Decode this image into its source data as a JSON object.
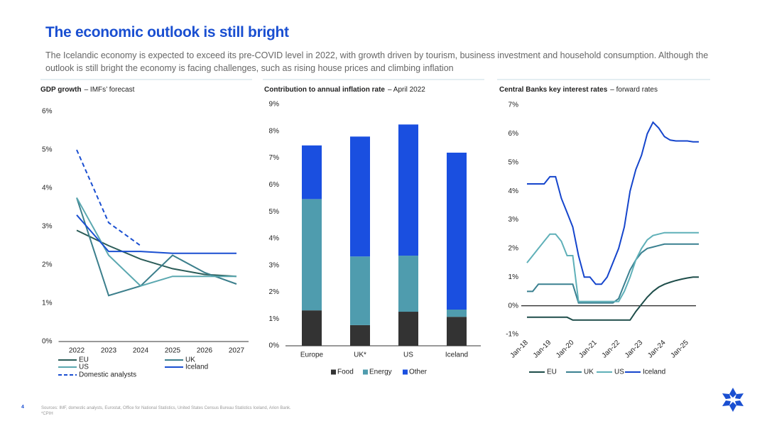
{
  "header": {
    "title": "The economic outlook is still bright",
    "subtitle": "The Icelandic economy is expected to exceed its pre-COVID level in 2022, with growth driven by tourism, business investment and household consumption. Although the outlook is still bright the economy is facing challenges, such as rising house prices and climbing inflation"
  },
  "footer": {
    "page": "4",
    "sources": "Sources: IMF, domestic analysts, Eurostat, Office for National Statistics, United States Census Bureau Statistics Iceland, Arion Bank. *CPIH"
  },
  "chart_data": [
    {
      "type": "line",
      "title": "GDP growth",
      "subtitle": "– IMFs’ forecast",
      "categories": [
        "2022",
        "2023",
        "2024",
        "2025",
        "2026",
        "2027"
      ],
      "ylim": [
        0,
        6
      ],
      "yticks": [
        {
          "value": 0,
          "label": "0%"
        },
        {
          "value": 1,
          "label": "1%"
        },
        {
          "value": 2,
          "label": "2%"
        },
        {
          "value": 3,
          "label": "3%"
        },
        {
          "value": 4,
          "label": "4%"
        },
        {
          "value": 5,
          "label": "5%"
        },
        {
          "value": 6,
          "label": "6%"
        }
      ],
      "series": [
        {
          "name": "EU",
          "color": "#2b5c58",
          "values": [
            2.9,
            2.5,
            2.15,
            1.9,
            1.75,
            1.7
          ]
        },
        {
          "name": "UK",
          "color": "#3c7f8c",
          "values": [
            3.75,
            1.2,
            1.45,
            2.25,
            1.8,
            1.5
          ]
        },
        {
          "name": "US",
          "color": "#5ba8b0",
          "values": [
            3.75,
            2.25,
            1.45,
            1.7,
            1.7,
            1.7
          ]
        },
        {
          "name": "Iceland",
          "color": "#1a4fd1",
          "values": [
            3.3,
            2.35,
            2.35,
            2.3,
            2.3,
            2.3
          ]
        },
        {
          "name": "Domestic analysts",
          "color": "#1a4fd1",
          "style": "dashed",
          "values": [
            5.0,
            3.1,
            2.5,
            null,
            null,
            null
          ]
        }
      ]
    },
    {
      "type": "stacked_bar",
      "title": "Contribution to annual inflation rate",
      "subtitle": "– April 2022",
      "categories": [
        "Europe",
        "UK*",
        "US",
        "Iceland"
      ],
      "ylim": [
        0,
        9
      ],
      "yticks": [
        {
          "value": 0,
          "label": "0%"
        },
        {
          "value": 1,
          "label": "1%"
        },
        {
          "value": 2,
          "label": "2%"
        },
        {
          "value": 3,
          "label": "3%"
        },
        {
          "value": 4,
          "label": "4%"
        },
        {
          "value": 5,
          "label": "5%"
        },
        {
          "value": 6,
          "label": "6%"
        },
        {
          "value": 7,
          "label": "7%"
        },
        {
          "value": 8,
          "label": "8%"
        },
        {
          "value": 9,
          "label": "9%"
        }
      ],
      "series": [
        {
          "name": "Food",
          "color": "#333333",
          "values": [
            1.32,
            0.77,
            1.27,
            1.08
          ]
        },
        {
          "name": "Energy",
          "color": "#4f9cae",
          "values": [
            4.15,
            2.56,
            2.09,
            0.27
          ]
        },
        {
          "name": "Other",
          "color": "#1a4fe0",
          "values": [
            2.0,
            4.47,
            4.89,
            5.85
          ]
        }
      ]
    },
    {
      "type": "line",
      "title": "Central Banks key interest rates",
      "subtitle": "– forward rates",
      "zero_line": true,
      "x": [
        2018,
        2018.25,
        2018.5,
        2018.75,
        2019,
        2019.25,
        2019.5,
        2019.75,
        2020,
        2020.25,
        2020.5,
        2020.75,
        2021,
        2021.25,
        2021.5,
        2021.75,
        2022,
        2022.25,
        2022.5,
        2022.75,
        2023,
        2023.25,
        2023.5,
        2023.75,
        2024,
        2024.25,
        2024.5,
        2024.75,
        2025,
        2025.25,
        2025.5
      ],
      "xlim": [
        2018,
        2025.5
      ],
      "xticks": [
        {
          "value": 2018,
          "label": "Jan-18"
        },
        {
          "value": 2019,
          "label": "Jan-19"
        },
        {
          "value": 2020,
          "label": "Jan-20"
        },
        {
          "value": 2021,
          "label": "Jan-21"
        },
        {
          "value": 2022,
          "label": "Jan-22"
        },
        {
          "value": 2023,
          "label": "Jan-23"
        },
        {
          "value": 2024,
          "label": "Jan-24"
        },
        {
          "value": 2025,
          "label": "Jan-25"
        }
      ],
      "ylim": [
        -1,
        7
      ],
      "yticks": [
        {
          "value": -1,
          "label": "-1%"
        },
        {
          "value": 0,
          "label": "0%"
        },
        {
          "value": 1,
          "label": "1%"
        },
        {
          "value": 2,
          "label": "2%"
        },
        {
          "value": 3,
          "label": "3%"
        },
        {
          "value": 4,
          "label": "4%"
        },
        {
          "value": 5,
          "label": "5%"
        },
        {
          "value": 6,
          "label": "6%"
        },
        {
          "value": 7,
          "label": "7%"
        }
      ],
      "series": [
        {
          "name": "EU",
          "color": "#1e4d4a",
          "values": [
            -0.4,
            -0.4,
            -0.4,
            -0.4,
            -0.4,
            -0.4,
            -0.4,
            -0.4,
            -0.5,
            -0.5,
            -0.5,
            -0.5,
            -0.5,
            -0.5,
            -0.5,
            -0.5,
            -0.5,
            -0.5,
            -0.5,
            -0.2,
            0.05,
            0.3,
            0.5,
            0.65,
            0.75,
            0.82,
            0.88,
            0.93,
            0.97,
            1.0,
            1.0
          ]
        },
        {
          "name": "UK",
          "color": "#3a8090",
          "values": [
            0.5,
            0.5,
            0.75,
            0.75,
            0.75,
            0.75,
            0.75,
            0.75,
            0.75,
            0.1,
            0.1,
            0.1,
            0.1,
            0.1,
            0.1,
            0.1,
            0.25,
            0.75,
            1.25,
            1.6,
            1.85,
            2.0,
            2.05,
            2.1,
            2.15,
            2.15,
            2.15,
            2.15,
            2.15,
            2.15,
            2.15
          ]
        },
        {
          "name": "US",
          "color": "#5fb0b8",
          "values": [
            1.5,
            1.75,
            2.0,
            2.25,
            2.5,
            2.5,
            2.25,
            1.75,
            1.75,
            0.15,
            0.15,
            0.15,
            0.15,
            0.15,
            0.15,
            0.15,
            0.15,
            0.5,
            1.0,
            1.6,
            2.0,
            2.3,
            2.45,
            2.5,
            2.55,
            2.55,
            2.55,
            2.55,
            2.55,
            2.55,
            2.55
          ]
        },
        {
          "name": "Iceland",
          "color": "#1545cc",
          "values": [
            4.25,
            4.25,
            4.25,
            4.25,
            4.5,
            4.5,
            3.75,
            3.25,
            2.75,
            1.75,
            1.0,
            1.0,
            0.75,
            0.75,
            1.0,
            1.5,
            2.0,
            2.75,
            4.0,
            4.75,
            5.25,
            6.0,
            6.4,
            6.2,
            5.9,
            5.78,
            5.75,
            5.75,
            5.75,
            5.72,
            5.72
          ]
        }
      ]
    }
  ]
}
